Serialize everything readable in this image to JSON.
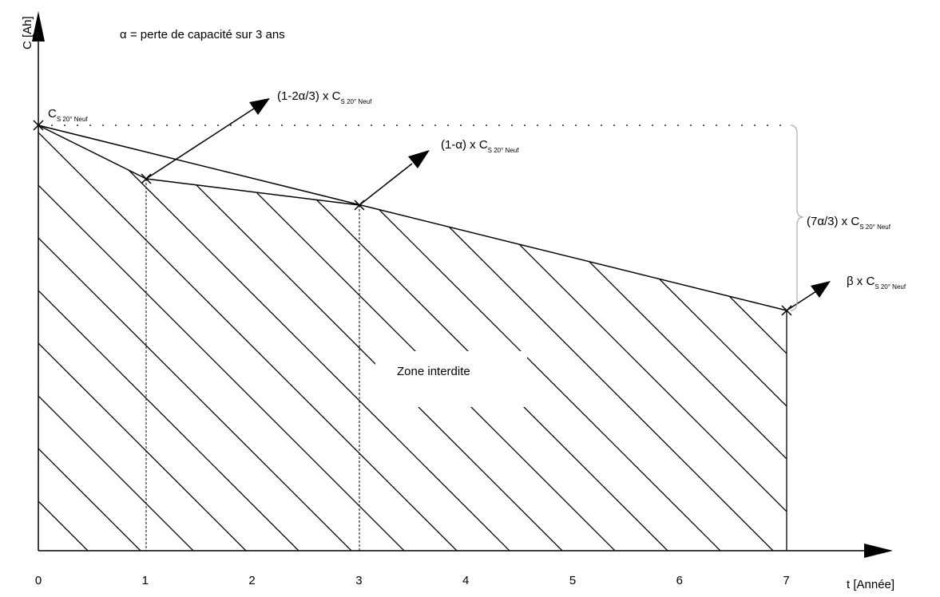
{
  "diagram": {
    "caption": "α = perte de capacité sur 3 ans",
    "y_axis_label": "C [Ah]",
    "x_axis_label": "t [Année]",
    "x_ticks": [
      "0",
      "1",
      "2",
      "3",
      "4",
      "5",
      "6",
      "7"
    ],
    "zone_label": "Zone interdite",
    "points": {
      "start": {
        "main": "C",
        "sub": "S 20° Neuf"
      },
      "year1": {
        "main": "(1-2α/3) x C",
        "sub": "S 20° Neuf"
      },
      "year3": {
        "main": "(1-α) x C",
        "sub": "S 20° Neuf"
      },
      "year7": {
        "main": "β x C",
        "sub": "S 20° Neuf"
      }
    },
    "brace_label": {
      "main": "(7α/3) x C",
      "sub": "S 20° Neuf"
    },
    "colors": {
      "line": "#000000",
      "brace": "#aaaaaa",
      "background": "#ffffff"
    }
  }
}
